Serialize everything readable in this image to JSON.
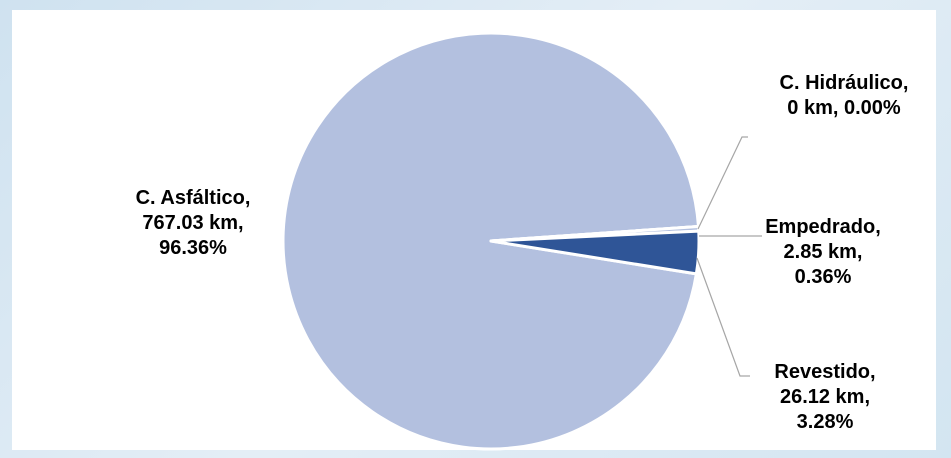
{
  "chart_data": {
    "type": "pie",
    "categories": [
      "C. Asfáltico",
      "C. Hidráulico",
      "Empedrado",
      "Revestido"
    ],
    "values": [
      767.03,
      0,
      2.85,
      26.12
    ],
    "percents": [
      "96.36%",
      "0.00%",
      "0.36%",
      "3.28%"
    ],
    "units": "km",
    "colors": [
      "#b3c0df",
      "#8fa5d2",
      "#b3c0df",
      "#2f5597"
    ],
    "data_labels": {
      "asfaltico": {
        "l1": "C. Asfáltico,",
        "l2": "767.03 km,",
        "l3": "96.36%"
      },
      "hidraulico": {
        "l1": "C. Hidráulico,",
        "l2": "0 km, 0.00%"
      },
      "empedrado": {
        "l1": "Empedrado,",
        "l2": "2.85 km,",
        "l3": "0.36%"
      },
      "revestido": {
        "l1": "Revestido,",
        "l2": "26.12 km,",
        "l3": "3.28%"
      }
    },
    "legend": "none"
  }
}
